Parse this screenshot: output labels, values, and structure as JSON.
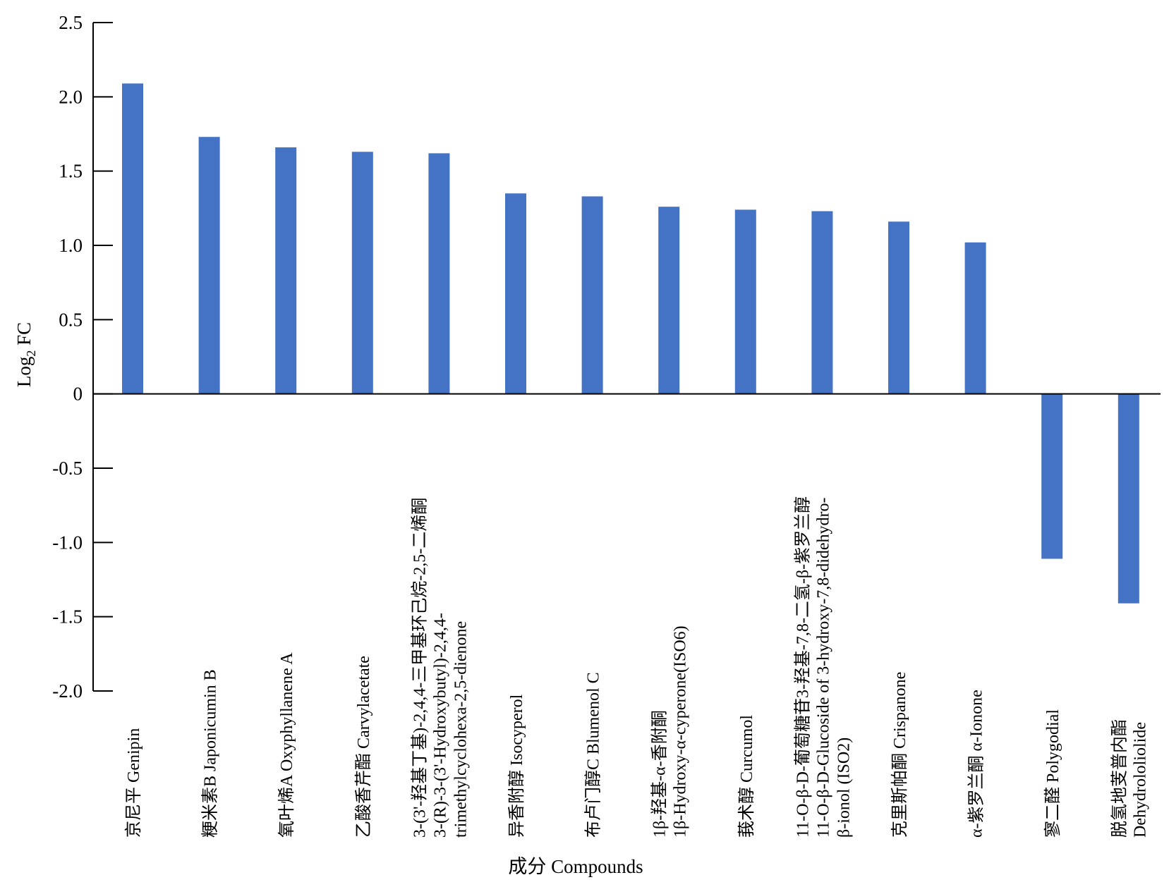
{
  "chart_data": {
    "type": "bar",
    "xlabel": "成分 Compounds",
    "ylabel": "Log",
    "ylabel_sub": "2",
    "ylabel_suffix": " FC",
    "ylim": [
      -2.0,
      2.5
    ],
    "yticks": [
      "2.5",
      "2.0",
      "1.5",
      "1.0",
      "0.5",
      "0",
      "-0.5",
      "-1.0",
      "-1.5",
      "-2.0"
    ],
    "ytick_values": [
      2.5,
      2.0,
      1.5,
      1.0,
      0.5,
      0,
      -0.5,
      -1.0,
      -1.5,
      -2.0
    ],
    "grid": false,
    "bar_color": "#4472c4",
    "categories": [
      [
        "京尼平 Genipin"
      ],
      [
        "粳米素B Japonicumin B"
      ],
      [
        "氧叶烯A Oxyphyllanene A"
      ],
      [
        "乙酸香芹酯  Carvylacetate"
      ],
      [
        "3-(3'-羟基丁基)-2,4,4-三甲基环己烷-2,5-二烯酮",
        "3-(R)-3-(3'-Hydroxybutyl)-2,4,4-",
        "trimethylcyclohexa-2,5-dienone"
      ],
      [
        "异香附醇 Isocyperol"
      ],
      [
        "布卢门醇C Blumenol C"
      ],
      [
        "1β-羟基-α-香附酮",
        "1β-Hydroxy-α-cyperone(ISO6)"
      ],
      [
        "莪术醇 Curcumol"
      ],
      [
        "11-O-β-D-葡萄糖苷3-羟基-7,8-二氢-β-紫罗兰醇",
        "11-O-β-D-Glucoside of 3-hydroxy-7,8-didehydro-",
        "β-ionol (ISO2)"
      ],
      [
        "克里斯帕酮 Crispanone"
      ],
      [
        "α-紫罗兰酮 α-Ionone"
      ],
      [
        "寥二醛 Polygodial"
      ],
      [
        "脱氢地芰普内酯",
        "Dehydrololiolide"
      ]
    ],
    "values": [
      2.09,
      1.73,
      1.66,
      1.63,
      1.62,
      1.35,
      1.33,
      1.26,
      1.24,
      1.23,
      1.16,
      1.02,
      -1.11,
      -1.41
    ]
  }
}
